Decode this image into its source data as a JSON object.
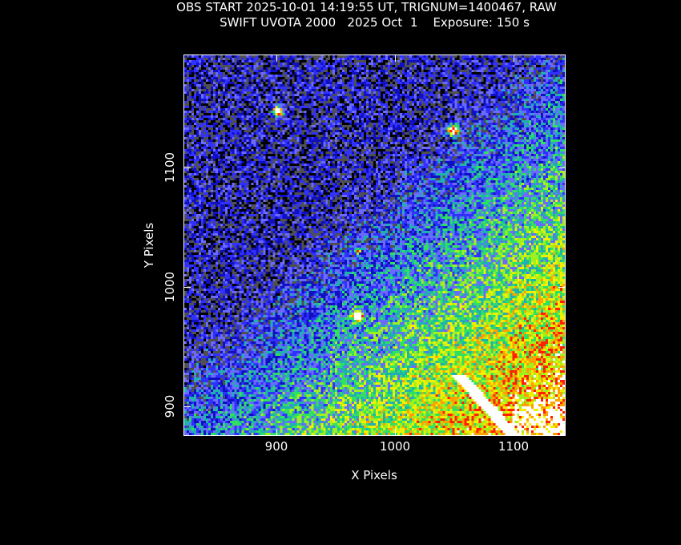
{
  "chart_data": {
    "type": "heatmap",
    "title": "OBS START 2025-10-01 14:19:55 UT, TRIGNUM=1400467, RAW",
    "subtitle": "SWIFT UVOTA 2000   2025 Oct  1    Exposure: 150 s",
    "xlabel": "X Pixels",
    "ylabel": "Y Pixels",
    "xlim": [
      822,
      1143
    ],
    "ylim": [
      876,
      1194
    ],
    "xticks": [
      900,
      1000,
      1100
    ],
    "yticks": [
      900,
      1000,
      1100
    ],
    "xtick_labels": [
      "900",
      "1000",
      "1100"
    ],
    "ytick_labels": [
      "900",
      "1000",
      "1100"
    ],
    "colormap": [
      "#000000",
      "#505050",
      "#1010c0",
      "#3030ff",
      "#6a6aff",
      "#20b0b0",
      "#30e060",
      "#a0f020",
      "#f0f000",
      "#ffa000",
      "#ff2000",
      "#ffffff"
    ],
    "bright_sources": [
      {
        "x": 900,
        "y": 1148
      },
      {
        "x": 1048,
        "y": 1132
      },
      {
        "x": 967,
        "y": 977
      },
      {
        "x": 967,
        "y": 1031
      }
    ],
    "diffuse_emission": "increasing toward lower right",
    "grid": false,
    "legend": "none"
  }
}
